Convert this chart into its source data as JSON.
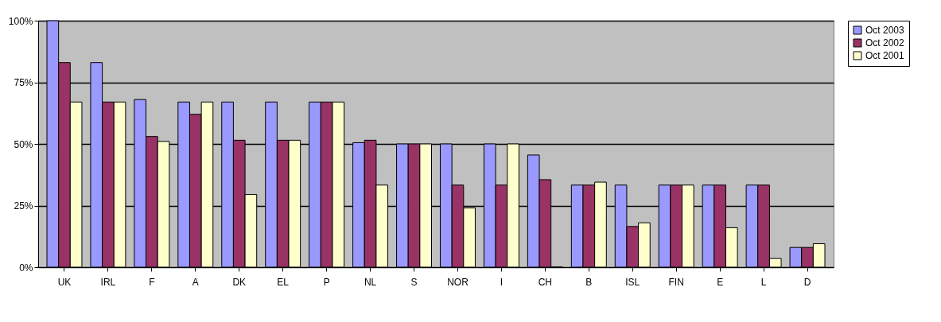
{
  "chart_data": {
    "type": "bar",
    "categories": [
      "UK",
      "IRL",
      "F",
      "A",
      "DK",
      "EL",
      "P",
      "NL",
      "S",
      "NOR",
      "I",
      "CH",
      "B",
      "ISL",
      "FIN",
      "E",
      "L",
      "D"
    ],
    "series": [
      {
        "name": "Oct 2003",
        "color": "#9999ff",
        "values": [
          100,
          83,
          68,
          67,
          67,
          67,
          67,
          50.5,
          50,
          50,
          50,
          45.5,
          33.3,
          33.3,
          33.3,
          33.3,
          33.3,
          8
        ]
      },
      {
        "name": "Oct 2002",
        "color": "#993366",
        "values": [
          83,
          67,
          53,
          62,
          51.5,
          51.5,
          67,
          51.5,
          50,
          33.3,
          33.3,
          35.5,
          33.3,
          16.5,
          33.3,
          33.3,
          33.3,
          8
        ]
      },
      {
        "name": "Oct 2001",
        "color": "#ffffcc",
        "values": [
          67,
          67,
          51,
          67,
          29.5,
          51.5,
          67,
          33.3,
          50,
          24,
          50,
          0,
          34.5,
          18,
          33.3,
          16,
          3.5,
          9.5
        ]
      }
    ],
    "ylim": [
      0,
      100
    ],
    "yticks": [
      {
        "value": 0,
        "label": "0%"
      },
      {
        "value": 25,
        "label": "25%"
      },
      {
        "value": 50,
        "label": "50%"
      },
      {
        "value": 75,
        "label": "75%"
      },
      {
        "value": 100,
        "label": "100%"
      }
    ],
    "grid": "y",
    "legend": "right"
  }
}
